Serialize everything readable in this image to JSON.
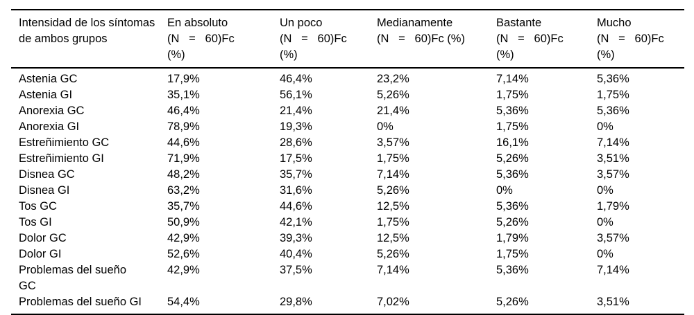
{
  "table": {
    "name": "Intensidad de los síntomas de ambos grupos",
    "columns": [
      {
        "id": "sintoma",
        "label": "Intensidad de los síntomas\nde ambos grupos"
      },
      {
        "id": "en-absoluto",
        "label": "En absoluto\n(N   =   60)Fc\n(%)"
      },
      {
        "id": "un-poco",
        "label": "Un poco\n(N   =   60)Fc\n(%)"
      },
      {
        "id": "medianamente",
        "label": "Medianamente\n(N   =   60)Fc (%)"
      },
      {
        "id": "bastante",
        "label": "Bastante\n(N   =   60)Fc\n(%)"
      },
      {
        "id": "mucho",
        "label": "Mucho\n(N   =   60)Fc\n(%)"
      }
    ],
    "rows": [
      {
        "label": "Astenia GC",
        "values": [
          "17,9%",
          "46,4%",
          "23,2%",
          "7,14%",
          "5,36%"
        ]
      },
      {
        "label": "Astenia GI",
        "values": [
          "35,1%",
          "56,1%",
          "5,26%",
          "1,75%",
          "1,75%"
        ]
      },
      {
        "label": "Anorexia GC",
        "values": [
          "46,4%",
          "21,4%",
          "21,4%",
          "5,36%",
          "5,36%"
        ]
      },
      {
        "label": "Anorexia GI",
        "values": [
          "78,9%",
          "19,3%",
          "0%",
          "1,75%",
          "0%"
        ]
      },
      {
        "label": "Estreñimiento GC",
        "values": [
          "44,6%",
          "28,6%",
          "3,57%",
          "16,1%",
          "7,14%"
        ]
      },
      {
        "label": "Estreñimiento GI",
        "values": [
          "71,9%",
          "17,5%",
          "1,75%",
          "5,26%",
          "3,51%"
        ]
      },
      {
        "label": "Disnea GC",
        "values": [
          "48,2%",
          "35,7%",
          "7,14%",
          "5,36%",
          "3,57%"
        ]
      },
      {
        "label": "Disnea GI",
        "values": [
          "63,2%",
          "31,6%",
          "5,26%",
          "0%",
          "0%"
        ]
      },
      {
        "label": "Tos GC",
        "values": [
          "35,7%",
          "44,6%",
          "12,5%",
          "5,36%",
          "1,79%"
        ]
      },
      {
        "label": "Tos GI",
        "values": [
          "50,9%",
          "42,1%",
          "1,75%",
          "5,26%",
          "0%"
        ]
      },
      {
        "label": "Dolor GC",
        "values": [
          "42,9%",
          "39,3%",
          "12,5%",
          "1,79%",
          "3,57%"
        ]
      },
      {
        "label": "Dolor GI",
        "values": [
          "52,6%",
          "40,4%",
          "5,26%",
          "1,75%",
          "0%"
        ]
      },
      {
        "label": "Problemas del sueño\nGC",
        "values": [
          "42,9%",
          "37,5%",
          "7,14%",
          "5,36%",
          "7,14%"
        ]
      },
      {
        "label": "Problemas del sueño GI",
        "values": [
          "54,4%",
          "29,8%",
          "7,02%",
          "5,26%",
          "3,51%"
        ]
      }
    ]
  },
  "chart_data": {
    "type": "table",
    "title": "Intensidad de los síntomas de ambos grupos",
    "columns": [
      "Intensidad de los síntomas de ambos grupos",
      "En absoluto (N = 60)Fc (%)",
      "Un poco (N = 60)Fc (%)",
      "Medianamente (N = 60)Fc (%)",
      "Bastante (N = 60)Fc (%)",
      "Mucho (N = 60)Fc (%)"
    ],
    "rows": [
      [
        "Astenia GC",
        "17,9%",
        "46,4%",
        "23,2%",
        "7,14%",
        "5,36%"
      ],
      [
        "Astenia GI",
        "35,1%",
        "56,1%",
        "5,26%",
        "1,75%",
        "1,75%"
      ],
      [
        "Anorexia GC",
        "46,4%",
        "21,4%",
        "21,4%",
        "5,36%",
        "5,36%"
      ],
      [
        "Anorexia GI",
        "78,9%",
        "19,3%",
        "0%",
        "1,75%",
        "0%"
      ],
      [
        "Estreñimiento GC",
        "44,6%",
        "28,6%",
        "3,57%",
        "16,1%",
        "7,14%"
      ],
      [
        "Estreñimiento GI",
        "71,9%",
        "17,5%",
        "1,75%",
        "5,26%",
        "3,51%"
      ],
      [
        "Disnea GC",
        "48,2%",
        "35,7%",
        "7,14%",
        "5,36%",
        "3,57%"
      ],
      [
        "Disnea GI",
        "63,2%",
        "31,6%",
        "5,26%",
        "0%",
        "0%"
      ],
      [
        "Tos GC",
        "35,7%",
        "44,6%",
        "12,5%",
        "5,36%",
        "1,79%"
      ],
      [
        "Tos GI",
        "50,9%",
        "42,1%",
        "1,75%",
        "5,26%",
        "0%"
      ],
      [
        "Dolor GC",
        "42,9%",
        "39,3%",
        "12,5%",
        "1,79%",
        "3,57%"
      ],
      [
        "Dolor GI",
        "52,6%",
        "40,4%",
        "5,26%",
        "1,75%",
        "0%"
      ],
      [
        "Problemas del sueño GC",
        "42,9%",
        "37,5%",
        "7,14%",
        "5,36%",
        "7,14%"
      ],
      [
        "Problemas del sueño GI",
        "54,4%",
        "29,8%",
        "7,02%",
        "5,26%",
        "3,51%"
      ]
    ]
  },
  "colors": {
    "text": "#000000",
    "background": "#ffffff",
    "rule": "#000000"
  }
}
